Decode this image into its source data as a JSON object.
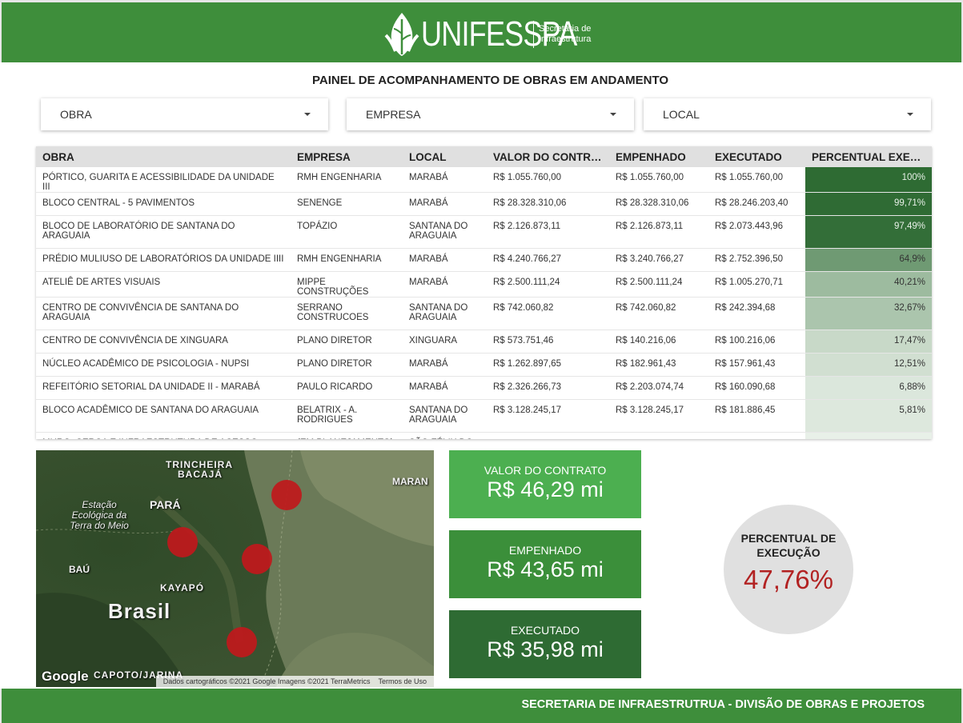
{
  "header": {
    "logo_text": "UNIFESSPA",
    "logo_sub_line1": "Secretaria de",
    "logo_sub_line2": "Infraestrutura",
    "background": "#3e8e3b"
  },
  "page_title": "PAINEL DE ACOMPANHAMENTO DE OBRAS EM ANDAMENTO",
  "filters": [
    {
      "label": "OBRA"
    },
    {
      "label": "EMPRESA"
    },
    {
      "label": "LOCAL"
    }
  ],
  "table": {
    "headers": [
      "OBRA",
      "EMPRESA",
      "LOCAL",
      "VALOR DO CONTRATO",
      "EMPENHADO",
      "EXECUTADO",
      "PERCENTUAL EXECUÇÃO"
    ],
    "header_visible": [
      "OBRA",
      "EMPRESA",
      "LOCAL",
      "VALOR DO CONTRA...",
      "EMPENHADO",
      "EXECUTADO",
      "PERCENTUAL EXEC..."
    ],
    "rows": [
      {
        "obra": "PÓRTICO, GUARITA E ACESSIBILIDADE DA UNIDADE III",
        "empresa": "RMH ENGENHARIA",
        "local": "MARABÁ",
        "valor": "R$ 1.055.760,00",
        "empenhado": "R$ 1.055.760,00",
        "executado": "R$ 1.055.760,00",
        "percentual": "100%",
        "pct_value": 100
      },
      {
        "obra": "BLOCO CENTRAL - 5 PAVIMENTOS",
        "empresa": "SENENGE",
        "local": "MARABÁ",
        "valor": "R$ 28.328.310,06",
        "empenhado": "R$ 28.328.310,06",
        "executado": "R$ 28.246.203,40",
        "percentual": "99,71%",
        "pct_value": 99.71
      },
      {
        "obra": "BLOCO DE LABORATÓRIO DE SANTANA DO ARAGUAIA",
        "empresa": "TOPÁZIO",
        "local": "SANTANA DO ARAGUAIA",
        "valor": "R$ 2.126.873,11",
        "empenhado": "R$ 2.126.873,11",
        "executado": "R$ 2.073.443,96",
        "percentual": "97,49%",
        "pct_value": 97.49
      },
      {
        "obra": "PRÉDIO MULIUSO DE LABORATÓRIOS DA UNIDADE IIII",
        "empresa": "RMH ENGENHARIA",
        "local": "MARABÁ",
        "valor": "R$ 4.240.766,27",
        "empenhado": "R$ 3.240.766,27",
        "executado": "R$ 2.752.396,50",
        "percentual": "64,9%",
        "pct_value": 64.9
      },
      {
        "obra": "ATELIÊ DE ARTES VISUAIS",
        "empresa": "MIPPE CONSTRUÇÕES",
        "local": "MARABÁ",
        "valor": "R$ 2.500.111,24",
        "empenhado": "R$ 2.500.111,24",
        "executado": "R$ 1.005.270,71",
        "percentual": "40,21%",
        "pct_value": 40.21
      },
      {
        "obra": "CENTRO DE CONVIVÊNCIA DE SANTANA DO ARAGUAIA",
        "empresa": "SERRANO CONSTRUCOES",
        "local": "SANTANA DO ARAGUAIA",
        "valor": "R$ 742.060,82",
        "empenhado": "R$ 742.060,82",
        "executado": "R$ 242.394,68",
        "percentual": "32,67%",
        "pct_value": 32.67
      },
      {
        "obra": "CENTRO DE CONVIVÊNCIA DE XINGUARA",
        "empresa": "PLANO DIRETOR",
        "local": "XINGUARA",
        "valor": "R$ 573.751,46",
        "empenhado": "R$ 140.216,06",
        "executado": "R$ 100.216,06",
        "percentual": "17,47%",
        "pct_value": 17.47
      },
      {
        "obra": "NÚCLEO ACADÊMICO DE PSICOLOGIA - NUPSI",
        "empresa": "PLANO DIRETOR",
        "local": "MARABÁ",
        "valor": "R$ 1.262.897,65",
        "empenhado": "R$ 182.961,43",
        "executado": "R$ 157.961,43",
        "percentual": "12,51%",
        "pct_value": 12.51
      },
      {
        "obra": "REFEITÓRIO SETORIAL DA UNIDADE II - MARABÁ",
        "empresa": "PAULO RICARDO",
        "local": "MARABÁ",
        "valor": "R$ 2.326.266,73",
        "empenhado": "R$ 2.203.074,74",
        "executado": "R$ 160.090,68",
        "percentual": "6,88%",
        "pct_value": 6.88
      },
      {
        "obra": "BLOCO ACADÊMICO DE SANTANA DO ARAGUAIA",
        "empresa": "BELATRIX - A. RODRIGUES",
        "local": "SANTANA DO ARAGUAIA",
        "valor": "R$ 3.128.245,17",
        "empenhado": "R$ 3.128.245,17",
        "executado": "R$ 181.886,45",
        "percentual": "5,81%",
        "pct_value": 5.81
      },
      {
        "obra": "MURO, CERCA E INFRAESTRUTURA DE ACESSO PARA",
        "empresa": "(EM PLANEJAMENTO)",
        "local": "SÃO FÉLIX DO",
        "valor": "",
        "empenhado": "",
        "executado": "",
        "percentual": "",
        "pct_value": 0
      }
    ]
  },
  "map": {
    "labels": {
      "trincheira": "TRINCHEIRA",
      "bacaja": "BACAJÁ",
      "estacao1": "Estação",
      "estacao2": "Ecológica da",
      "estacao3": "Terra do Meio",
      "para": "PARÁ",
      "maran": "MARAN",
      "bau": "BAÚ",
      "kayapo": "KAYAPÓ",
      "brasil": "Brasil",
      "capoto": "CAPOTO/JARINA"
    },
    "google": "Google",
    "attribution": "Dados cartográficos ©2021 Google Imagens ©2021 TerraMetrics",
    "terms": "Termos de Uso",
    "marker_color": "#c0191c"
  },
  "kpis": [
    {
      "label": "VALOR DO CONTRATO",
      "value": "R$ 46,29 mi",
      "color": "#4caf50"
    },
    {
      "label": "EMPENHADO",
      "value": "R$ 43,65 mi",
      "color": "#3b8f3a"
    },
    {
      "label": "EXECUTADO",
      "value": "R$ 35,98 mi",
      "color": "#2e6b33"
    }
  ],
  "percentual": {
    "label": "PERCENTUAL DE EXECUÇÃO",
    "value": "47,76%",
    "color": "#b22222"
  },
  "footer": {
    "text": "SECRETARIA DE INFRAESTRUTRUA - DIVISÃO DE OBRAS E PROJETOS"
  }
}
